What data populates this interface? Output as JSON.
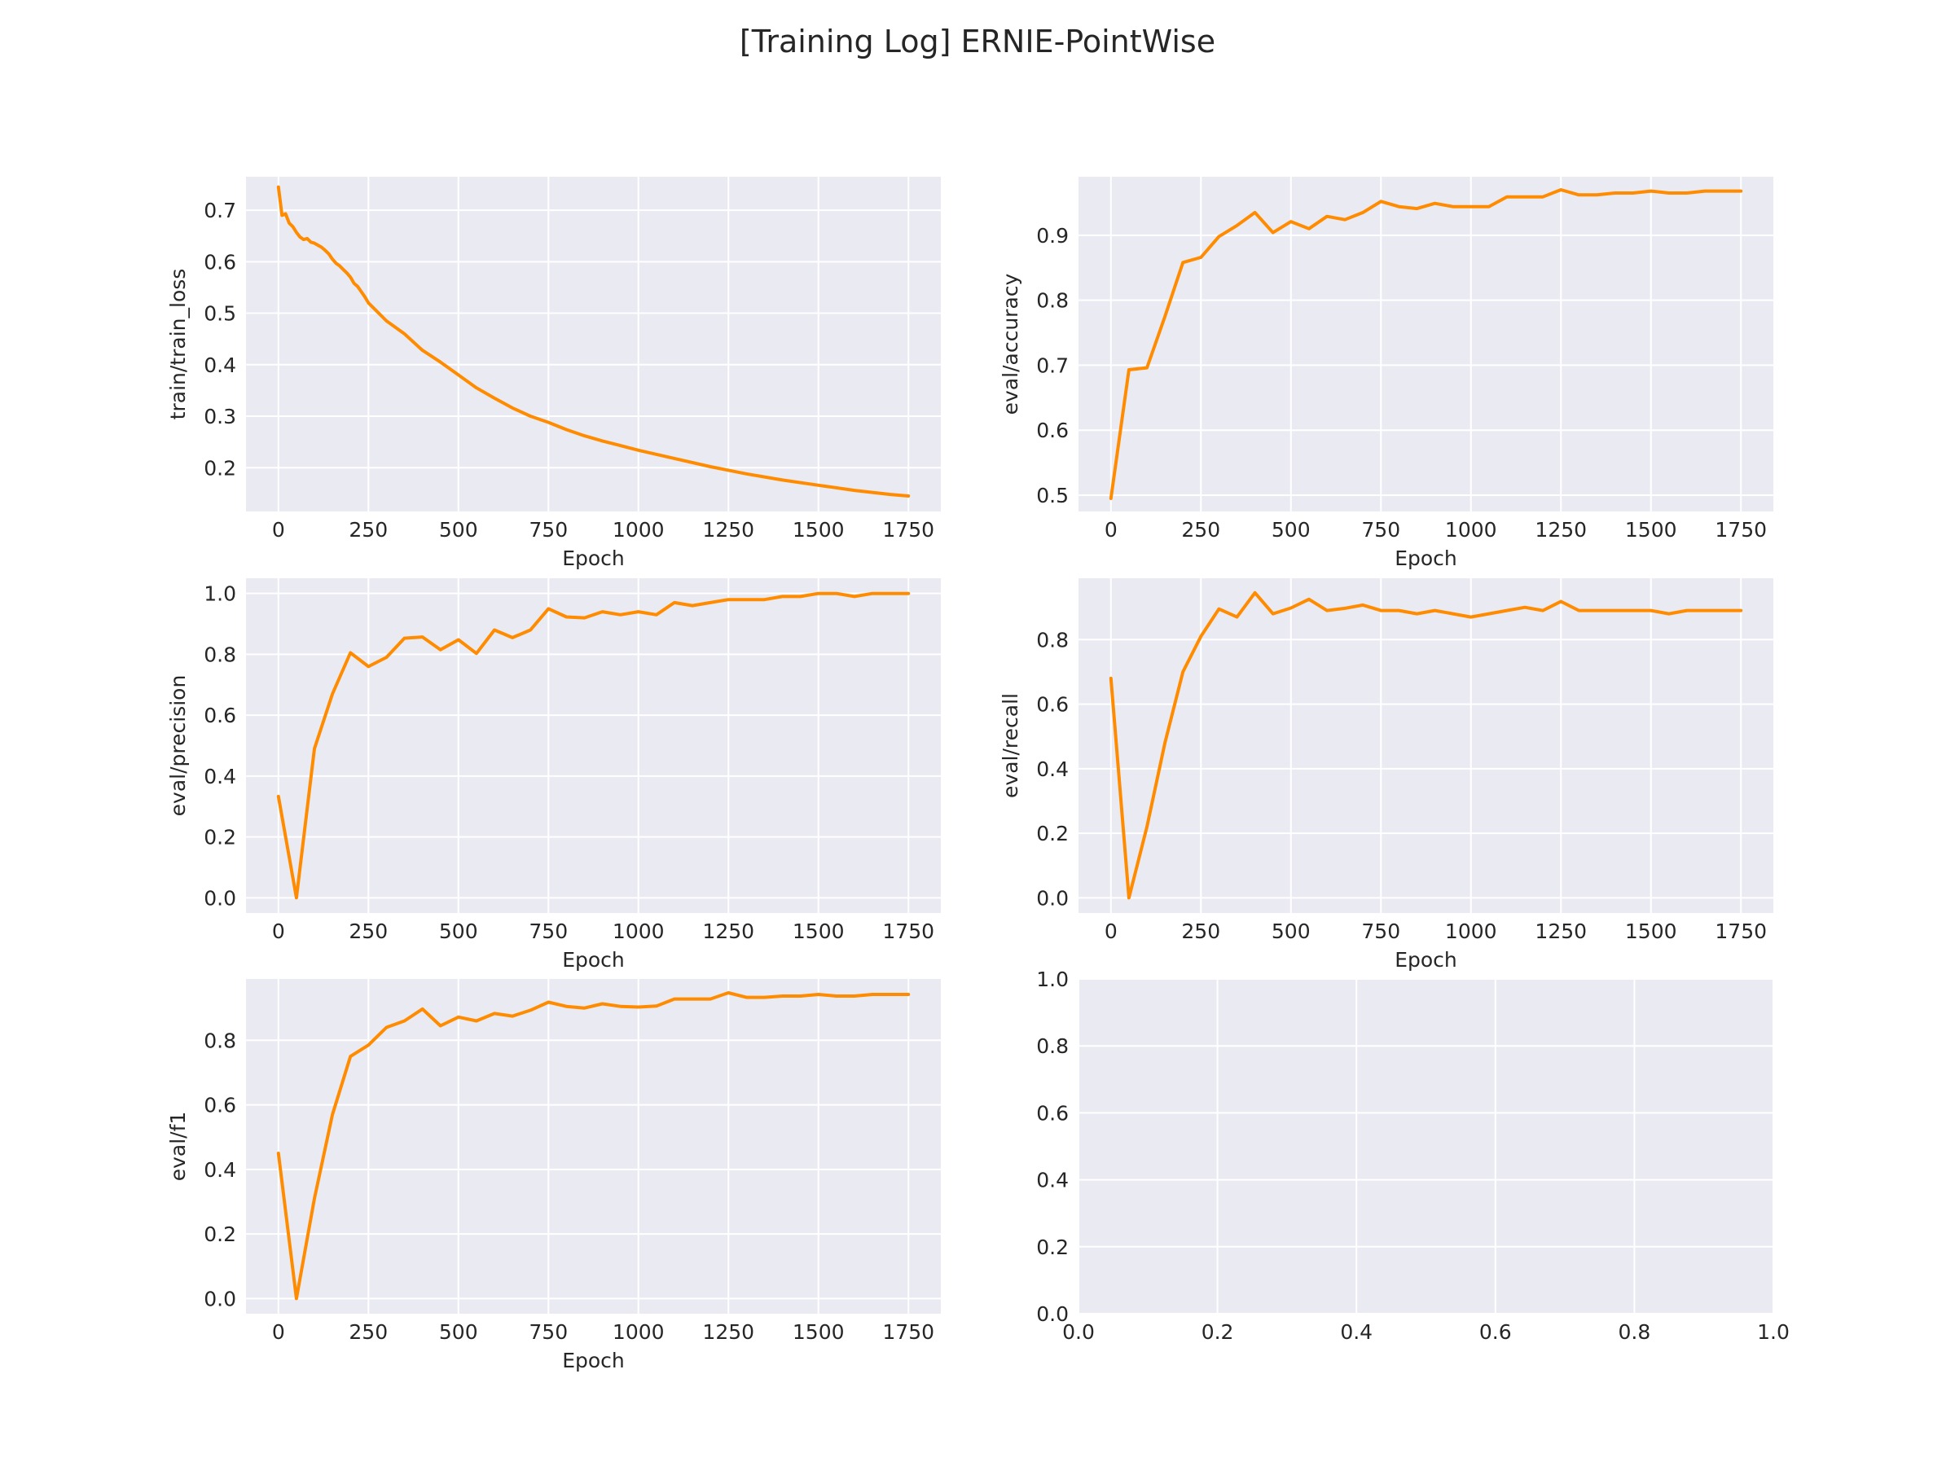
{
  "figure": {
    "title": "[Training Log] ERNIE-PointWise"
  },
  "colors": {
    "line": "#ff8c00",
    "panel": "#eaeaf2",
    "grid": "#ffffff",
    "text": "#262626"
  },
  "chart_data": [
    {
      "type": "line",
      "xlabel": "Epoch",
      "ylabel": "train/train_loss",
      "xlim": [
        -90,
        1840
      ],
      "ylim": [
        0.115,
        0.765
      ],
      "xticks": [
        0,
        250,
        500,
        750,
        1000,
        1250,
        1500,
        1750
      ],
      "yticks": [
        0.2,
        0.3,
        0.4,
        0.5,
        0.6,
        0.7
      ],
      "ytick_labels": [
        "0.2",
        "0.3",
        "0.4",
        "0.5",
        "0.6",
        "0.7"
      ],
      "x": [
        0,
        10,
        20,
        30,
        40,
        50,
        60,
        70,
        80,
        90,
        100,
        110,
        120,
        130,
        140,
        150,
        160,
        170,
        180,
        190,
        200,
        210,
        220,
        230,
        240,
        250,
        300,
        350,
        400,
        450,
        500,
        550,
        600,
        650,
        700,
        750,
        800,
        850,
        900,
        950,
        1000,
        1100,
        1200,
        1300,
        1400,
        1500,
        1600,
        1700,
        1750
      ],
      "y": [
        0.745,
        0.69,
        0.693,
        0.675,
        0.668,
        0.657,
        0.648,
        0.643,
        0.645,
        0.638,
        0.636,
        0.632,
        0.628,
        0.622,
        0.615,
        0.605,
        0.597,
        0.592,
        0.585,
        0.578,
        0.57,
        0.558,
        0.552,
        0.542,
        0.532,
        0.52,
        0.485,
        0.46,
        0.428,
        0.405,
        0.38,
        0.355,
        0.335,
        0.316,
        0.3,
        0.288,
        0.274,
        0.262,
        0.252,
        0.243,
        0.234,
        0.218,
        0.202,
        0.188,
        0.176,
        0.166,
        0.156,
        0.148,
        0.145
      ]
    },
    {
      "type": "line",
      "xlabel": "Epoch",
      "ylabel": "eval/accuracy",
      "xlim": [
        -90,
        1840
      ],
      "ylim": [
        0.475,
        0.99
      ],
      "xticks": [
        0,
        250,
        500,
        750,
        1000,
        1250,
        1500,
        1750
      ],
      "yticks": [
        0.5,
        0.6,
        0.7,
        0.8,
        0.9
      ],
      "ytick_labels": [
        "0.5",
        "0.6",
        "0.7",
        "0.8",
        "0.9"
      ],
      "x": [
        0,
        50,
        100,
        150,
        200,
        250,
        300,
        350,
        400,
        450,
        500,
        550,
        600,
        650,
        700,
        750,
        800,
        850,
        900,
        950,
        1000,
        1050,
        1100,
        1150,
        1200,
        1250,
        1300,
        1350,
        1400,
        1450,
        1500,
        1550,
        1600,
        1650,
        1700,
        1750
      ],
      "y": [
        0.495,
        0.693,
        0.696,
        0.775,
        0.858,
        0.866,
        0.898,
        0.915,
        0.935,
        0.904,
        0.921,
        0.91,
        0.929,
        0.924,
        0.935,
        0.952,
        0.944,
        0.941,
        0.949,
        0.944,
        0.944,
        0.944,
        0.959,
        0.959,
        0.959,
        0.97,
        0.962,
        0.962,
        0.965,
        0.965,
        0.968,
        0.965,
        0.965,
        0.968,
        0.968,
        0.968
      ]
    },
    {
      "type": "line",
      "xlabel": "Epoch",
      "ylabel": "eval/precision",
      "xlim": [
        -90,
        1840
      ],
      "ylim": [
        -0.05,
        1.05
      ],
      "xticks": [
        0,
        250,
        500,
        750,
        1000,
        1250,
        1500,
        1750
      ],
      "yticks": [
        0.0,
        0.2,
        0.4,
        0.6,
        0.8,
        1.0
      ],
      "ytick_labels": [
        "0.0",
        "0.2",
        "0.4",
        "0.6",
        "0.8",
        "1.0"
      ],
      "x": [
        0,
        50,
        100,
        150,
        200,
        250,
        300,
        350,
        400,
        450,
        500,
        550,
        600,
        650,
        700,
        750,
        800,
        850,
        900,
        950,
        1000,
        1050,
        1100,
        1150,
        1200,
        1250,
        1300,
        1350,
        1400,
        1450,
        1500,
        1550,
        1600,
        1650,
        1700,
        1750
      ],
      "y": [
        0.333,
        0.0,
        0.49,
        0.67,
        0.805,
        0.76,
        0.79,
        0.853,
        0.857,
        0.815,
        0.848,
        0.803,
        0.88,
        0.855,
        0.88,
        0.95,
        0.923,
        0.92,
        0.94,
        0.93,
        0.94,
        0.93,
        0.97,
        0.96,
        0.97,
        0.98,
        0.98,
        0.98,
        0.99,
        0.99,
        1.0,
        1.0,
        0.99,
        1.0,
        1.0,
        1.0
      ]
    },
    {
      "type": "line",
      "xlabel": "Epoch",
      "ylabel": "eval/recall",
      "xlim": [
        -90,
        1840
      ],
      "ylim": [
        -0.047,
        0.99
      ],
      "xticks": [
        0,
        250,
        500,
        750,
        1000,
        1250,
        1500,
        1750
      ],
      "yticks": [
        0.0,
        0.2,
        0.4,
        0.6,
        0.8
      ],
      "ytick_labels": [
        "0.0",
        "0.2",
        "0.4",
        "0.6",
        "0.8"
      ],
      "x": [
        0,
        50,
        100,
        150,
        200,
        250,
        300,
        350,
        400,
        450,
        500,
        550,
        600,
        650,
        700,
        750,
        800,
        850,
        900,
        950,
        1000,
        1050,
        1100,
        1150,
        1200,
        1250,
        1300,
        1350,
        1400,
        1450,
        1500,
        1550,
        1600,
        1650,
        1700,
        1750
      ],
      "y": [
        0.68,
        0.0,
        0.22,
        0.48,
        0.7,
        0.81,
        0.895,
        0.87,
        0.945,
        0.88,
        0.898,
        0.925,
        0.89,
        0.897,
        0.907,
        0.89,
        0.89,
        0.88,
        0.89,
        0.88,
        0.87,
        0.88,
        0.89,
        0.9,
        0.89,
        0.918,
        0.89,
        0.89,
        0.89,
        0.89,
        0.89,
        0.88,
        0.89,
        0.89,
        0.89,
        0.89
      ]
    },
    {
      "type": "line",
      "xlabel": "Epoch",
      "ylabel": "eval/f1",
      "xlim": [
        -90,
        1840
      ],
      "ylim": [
        -0.047,
        0.99
      ],
      "xticks": [
        0,
        250,
        500,
        750,
        1000,
        1250,
        1500,
        1750
      ],
      "yticks": [
        0.0,
        0.2,
        0.4,
        0.6,
        0.8
      ],
      "ytick_labels": [
        "0.0",
        "0.2",
        "0.4",
        "0.6",
        "0.8"
      ],
      "x": [
        0,
        50,
        100,
        150,
        200,
        250,
        300,
        350,
        400,
        450,
        500,
        550,
        600,
        650,
        700,
        750,
        800,
        850,
        900,
        950,
        1000,
        1050,
        1100,
        1150,
        1200,
        1250,
        1300,
        1350,
        1400,
        1450,
        1500,
        1550,
        1600,
        1650,
        1700,
        1750
      ],
      "y": [
        0.45,
        0.0,
        0.31,
        0.57,
        0.75,
        0.785,
        0.84,
        0.86,
        0.897,
        0.845,
        0.872,
        0.86,
        0.883,
        0.875,
        0.893,
        0.918,
        0.905,
        0.9,
        0.913,
        0.905,
        0.903,
        0.906,
        0.928,
        0.928,
        0.928,
        0.947,
        0.933,
        0.933,
        0.937,
        0.937,
        0.942,
        0.937,
        0.937,
        0.942,
        0.942,
        0.942
      ]
    },
    {
      "type": "line",
      "xlabel": "",
      "ylabel": "",
      "xlim": [
        0,
        1
      ],
      "ylim": [
        0,
        1
      ],
      "xticks": [
        0.0,
        0.2,
        0.4,
        0.6,
        0.8,
        1.0
      ],
      "xtick_labels": [
        "0.0",
        "0.2",
        "0.4",
        "0.6",
        "0.8",
        "1.0"
      ],
      "yticks": [
        0.0,
        0.2,
        0.4,
        0.6,
        0.8,
        1.0
      ],
      "ytick_labels": [
        "0.0",
        "0.2",
        "0.4",
        "0.6",
        "0.8",
        "1.0"
      ],
      "x": [],
      "y": []
    }
  ]
}
